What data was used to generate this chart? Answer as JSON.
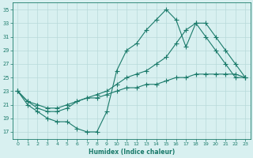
{
  "line1_x": [
    0,
    1,
    2,
    3,
    4,
    5,
    6,
    7,
    8,
    9,
    10,
    11,
    12,
    13,
    14,
    15,
    16,
    17,
    18,
    19,
    20,
    21,
    22,
    23
  ],
  "line1_y": [
    23,
    21,
    20,
    19,
    18.5,
    18.5,
    17.5,
    17,
    17,
    20,
    26,
    29,
    30,
    32,
    33.5,
    35,
    33.5,
    29.5,
    33,
    31,
    29,
    27,
    25,
    25
  ],
  "line2_x": [
    0,
    1,
    2,
    3,
    4,
    5,
    6,
    7,
    8,
    9,
    10,
    11,
    12,
    13,
    14,
    15,
    16,
    17,
    18,
    19,
    20,
    21,
    22,
    23
  ],
  "line2_y": [
    23,
    21.5,
    20.5,
    20,
    20,
    20.5,
    21.5,
    22,
    22.5,
    23,
    24,
    25,
    25.5,
    26,
    27,
    28,
    30,
    32,
    33,
    33,
    31,
    29,
    27,
    25
  ],
  "line3_x": [
    0,
    1,
    2,
    3,
    4,
    5,
    6,
    7,
    8,
    9,
    10,
    11,
    12,
    13,
    14,
    15,
    16,
    17,
    18,
    19,
    20,
    21,
    22,
    23
  ],
  "line3_y": [
    23,
    21.5,
    21,
    20.5,
    20.5,
    21,
    21.5,
    22,
    22,
    22.5,
    23,
    23.5,
    23.5,
    24,
    24,
    24.5,
    25,
    25,
    25.5,
    25.5,
    25.5,
    25.5,
    25.5,
    25
  ],
  "line_color": "#1a7a6a",
  "bg_color": "#d8f0f0",
  "grid_color": "#b8dada",
  "xlabel": "Humidex (Indice chaleur)",
  "xlim": [
    -0.5,
    23.5
  ],
  "ylim": [
    16,
    36
  ],
  "yticks": [
    17,
    19,
    21,
    23,
    25,
    27,
    29,
    31,
    33,
    35
  ],
  "xticks": [
    0,
    1,
    2,
    3,
    4,
    5,
    6,
    7,
    8,
    9,
    10,
    11,
    12,
    13,
    14,
    15,
    16,
    17,
    18,
    19,
    20,
    21,
    22,
    23
  ],
  "marker": "+",
  "markersize": 4,
  "linewidth": 0.8
}
